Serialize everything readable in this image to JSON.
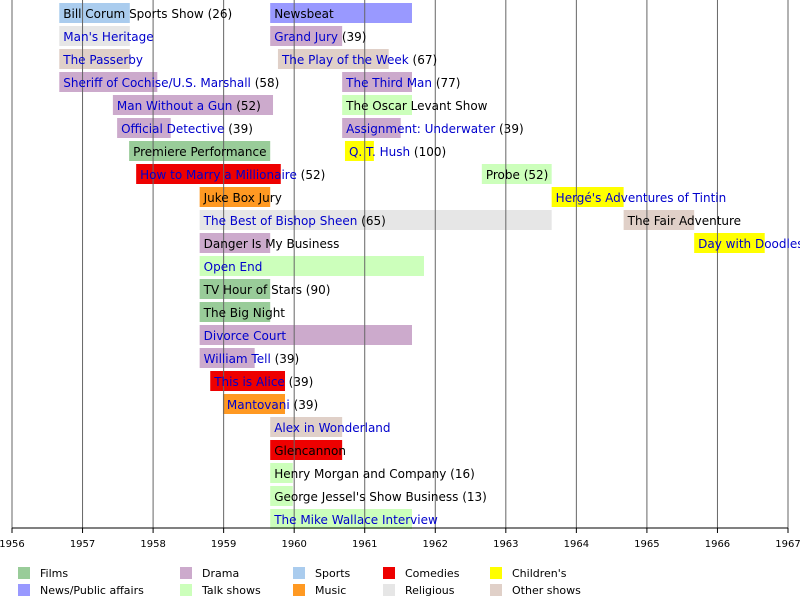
{
  "chart_data": {
    "type": "timeline",
    "xlim": [
      1956,
      1967
    ],
    "xticks": [
      1956,
      1957,
      1958,
      1959,
      1960,
      1961,
      1962,
      1963,
      1964,
      1965,
      1966,
      1967
    ],
    "grid": true,
    "legend": [
      {
        "name": "Films",
        "color": "#99cc99"
      },
      {
        "name": "News/Public affairs",
        "color": "#9999ff"
      },
      {
        "name": "Drama",
        "color": "#ccaacc"
      },
      {
        "name": "Talk shows",
        "color": "#ccffbb"
      },
      {
        "name": "Sports",
        "color": "#aaccee"
      },
      {
        "name": "Music",
        "color": "#ff9922"
      },
      {
        "name": "Comedies",
        "color": "#ee0000"
      },
      {
        "name": "Religious",
        "color": "#e6e6e6"
      },
      {
        "name": "Children's",
        "color": "#ffff00"
      },
      {
        "name": "Other shows",
        "color": "#e0d0c8"
      }
    ],
    "bars": [
      {
        "name": "Bill Corum Sports Show",
        "note": "(26)",
        "row": 0,
        "start": 1956.67,
        "end": 1957.67,
        "genre": "Sports",
        "link": false
      },
      {
        "name": "Newsbeat",
        "row": 0,
        "start": 1959.66,
        "end": 1961.67,
        "genre": "News/Public affairs",
        "link": false
      },
      {
        "name": "Man's Heritage",
        "row": 1,
        "start": 1956.67,
        "end": 1957.67,
        "genre": "Religious",
        "link": true
      },
      {
        "name": "Grand Jury",
        "note": "(39)",
        "row": 1,
        "start": 1959.66,
        "end": 1960.68,
        "genre": "Drama",
        "link": true
      },
      {
        "name": "The Passerby",
        "row": 2,
        "start": 1956.67,
        "end": 1957.67,
        "genre": "Other shows",
        "link": true
      },
      {
        "name": "The Play of the Week",
        "note": "(67)",
        "row": 2,
        "start": 1959.77,
        "end": 1961.34,
        "genre": "Other shows",
        "link": true
      },
      {
        "name": "Sheriff of Cochise/U.S. Marshall",
        "note": "(58)",
        "row": 3,
        "start": 1956.67,
        "end": 1958.06,
        "genre": "Drama",
        "link": true
      },
      {
        "name": "The Third Man",
        "note": "(77)",
        "row": 3,
        "start": 1960.68,
        "end": 1961.67,
        "genre": "Drama",
        "link": true
      },
      {
        "name": "Man Without a Gun",
        "note": "(52)",
        "row": 4,
        "start": 1957.43,
        "end": 1959.7,
        "genre": "Drama",
        "link": true
      },
      {
        "name": "The Oscar Levant Show",
        "row": 4,
        "start": 1960.68,
        "end": 1961.67,
        "genre": "Talk shows",
        "link": false
      },
      {
        "name": "Official Detective",
        "note": "(39)",
        "row": 5,
        "start": 1957.49,
        "end": 1958.25,
        "genre": "Drama",
        "link": true
      },
      {
        "name": "Assignment: Underwater",
        "note": "(39)",
        "row": 5,
        "start": 1960.68,
        "end": 1961.51,
        "genre": "Drama",
        "link": true
      },
      {
        "name": "Premiere Performance",
        "row": 6,
        "start": 1957.66,
        "end": 1959.66,
        "genre": "Films",
        "link": false
      },
      {
        "name": "Q. T. Hush",
        "note": "(100)",
        "row": 6,
        "start": 1960.72,
        "end": 1961.13,
        "genre": "Children's",
        "link": true
      },
      {
        "name": "How to Marry a Millionaire",
        "note": "(52)",
        "row": 7,
        "start": 1957.76,
        "end": 1959.81,
        "genre": "Comedies",
        "link": true
      },
      {
        "name": "Probe",
        "note": "(52)",
        "row": 7,
        "start": 1962.66,
        "end": 1963.65,
        "genre": "Talk shows",
        "link": false
      },
      {
        "name": "Juke Box Jury",
        "row": 8,
        "start": 1958.66,
        "end": 1959.66,
        "genre": "Music",
        "link": false
      },
      {
        "name": "Hergé's Adventures of Tintin",
        "row": 8,
        "start": 1963.65,
        "end": 1964.67,
        "genre": "Children's",
        "link": true
      },
      {
        "name": "The Best of Bishop Sheen",
        "note": "(65)",
        "row": 9,
        "start": 1958.66,
        "end": 1963.65,
        "genre": "Religious",
        "link": true
      },
      {
        "name": "The Fair Adventure",
        "row": 9,
        "start": 1964.67,
        "end": 1965.67,
        "genre": "Other shows",
        "link": false
      },
      {
        "name": "Danger Is My Business",
        "row": 10,
        "start": 1958.66,
        "end": 1959.66,
        "genre": "Drama",
        "link": false
      },
      {
        "name": "Day with Doodles",
        "row": 10,
        "start": 1965.67,
        "end": 1966.67,
        "genre": "Children's",
        "link": true
      },
      {
        "name": "Open End",
        "row": 11,
        "start": 1958.66,
        "end": 1961.84,
        "genre": "Talk shows",
        "link": true
      },
      {
        "name": "TV Hour of Stars",
        "note": "(90)",
        "row": 12,
        "start": 1958.66,
        "end": 1959.66,
        "genre": "Films",
        "link": false
      },
      {
        "name": "The Big Night",
        "row": 13,
        "start": 1958.66,
        "end": 1959.66,
        "genre": "Films",
        "link": false
      },
      {
        "name": "Divorce Court",
        "row": 14,
        "start": 1958.66,
        "end": 1961.67,
        "genre": "Drama",
        "link": true
      },
      {
        "name": "William Tell",
        "note": "(39)",
        "row": 15,
        "start": 1958.66,
        "end": 1959.44,
        "genre": "Drama",
        "link": true
      },
      {
        "name": "This is Alice",
        "note": "(39)",
        "row": 16,
        "start": 1958.81,
        "end": 1959.87,
        "genre": "Comedies",
        "link": true
      },
      {
        "name": "Mantovani",
        "note": "(39)",
        "row": 17,
        "start": 1958.99,
        "end": 1959.87,
        "genre": "Music",
        "link": true
      },
      {
        "name": "Alex in Wonderland",
        "row": 18,
        "start": 1959.66,
        "end": 1960.68,
        "genre": "Other shows",
        "link": true
      },
      {
        "name": "Glencannon",
        "row": 19,
        "start": 1959.66,
        "end": 1960.68,
        "genre": "Comedies",
        "link": false
      },
      {
        "name": "Henry Morgan and Company",
        "note": "(16)",
        "row": 20,
        "start": 1959.66,
        "end": 1959.98,
        "genre": "Talk shows",
        "link": false
      },
      {
        "name": "George Jessel's Show Business",
        "note": "(13)",
        "row": 21,
        "start": 1959.66,
        "end": 1959.98,
        "genre": "Talk shows",
        "link": false
      },
      {
        "name": "The Mike Wallace Interview",
        "row": 22,
        "start": 1959.66,
        "end": 1961.67,
        "genre": "Talk shows",
        "link": true
      }
    ]
  }
}
